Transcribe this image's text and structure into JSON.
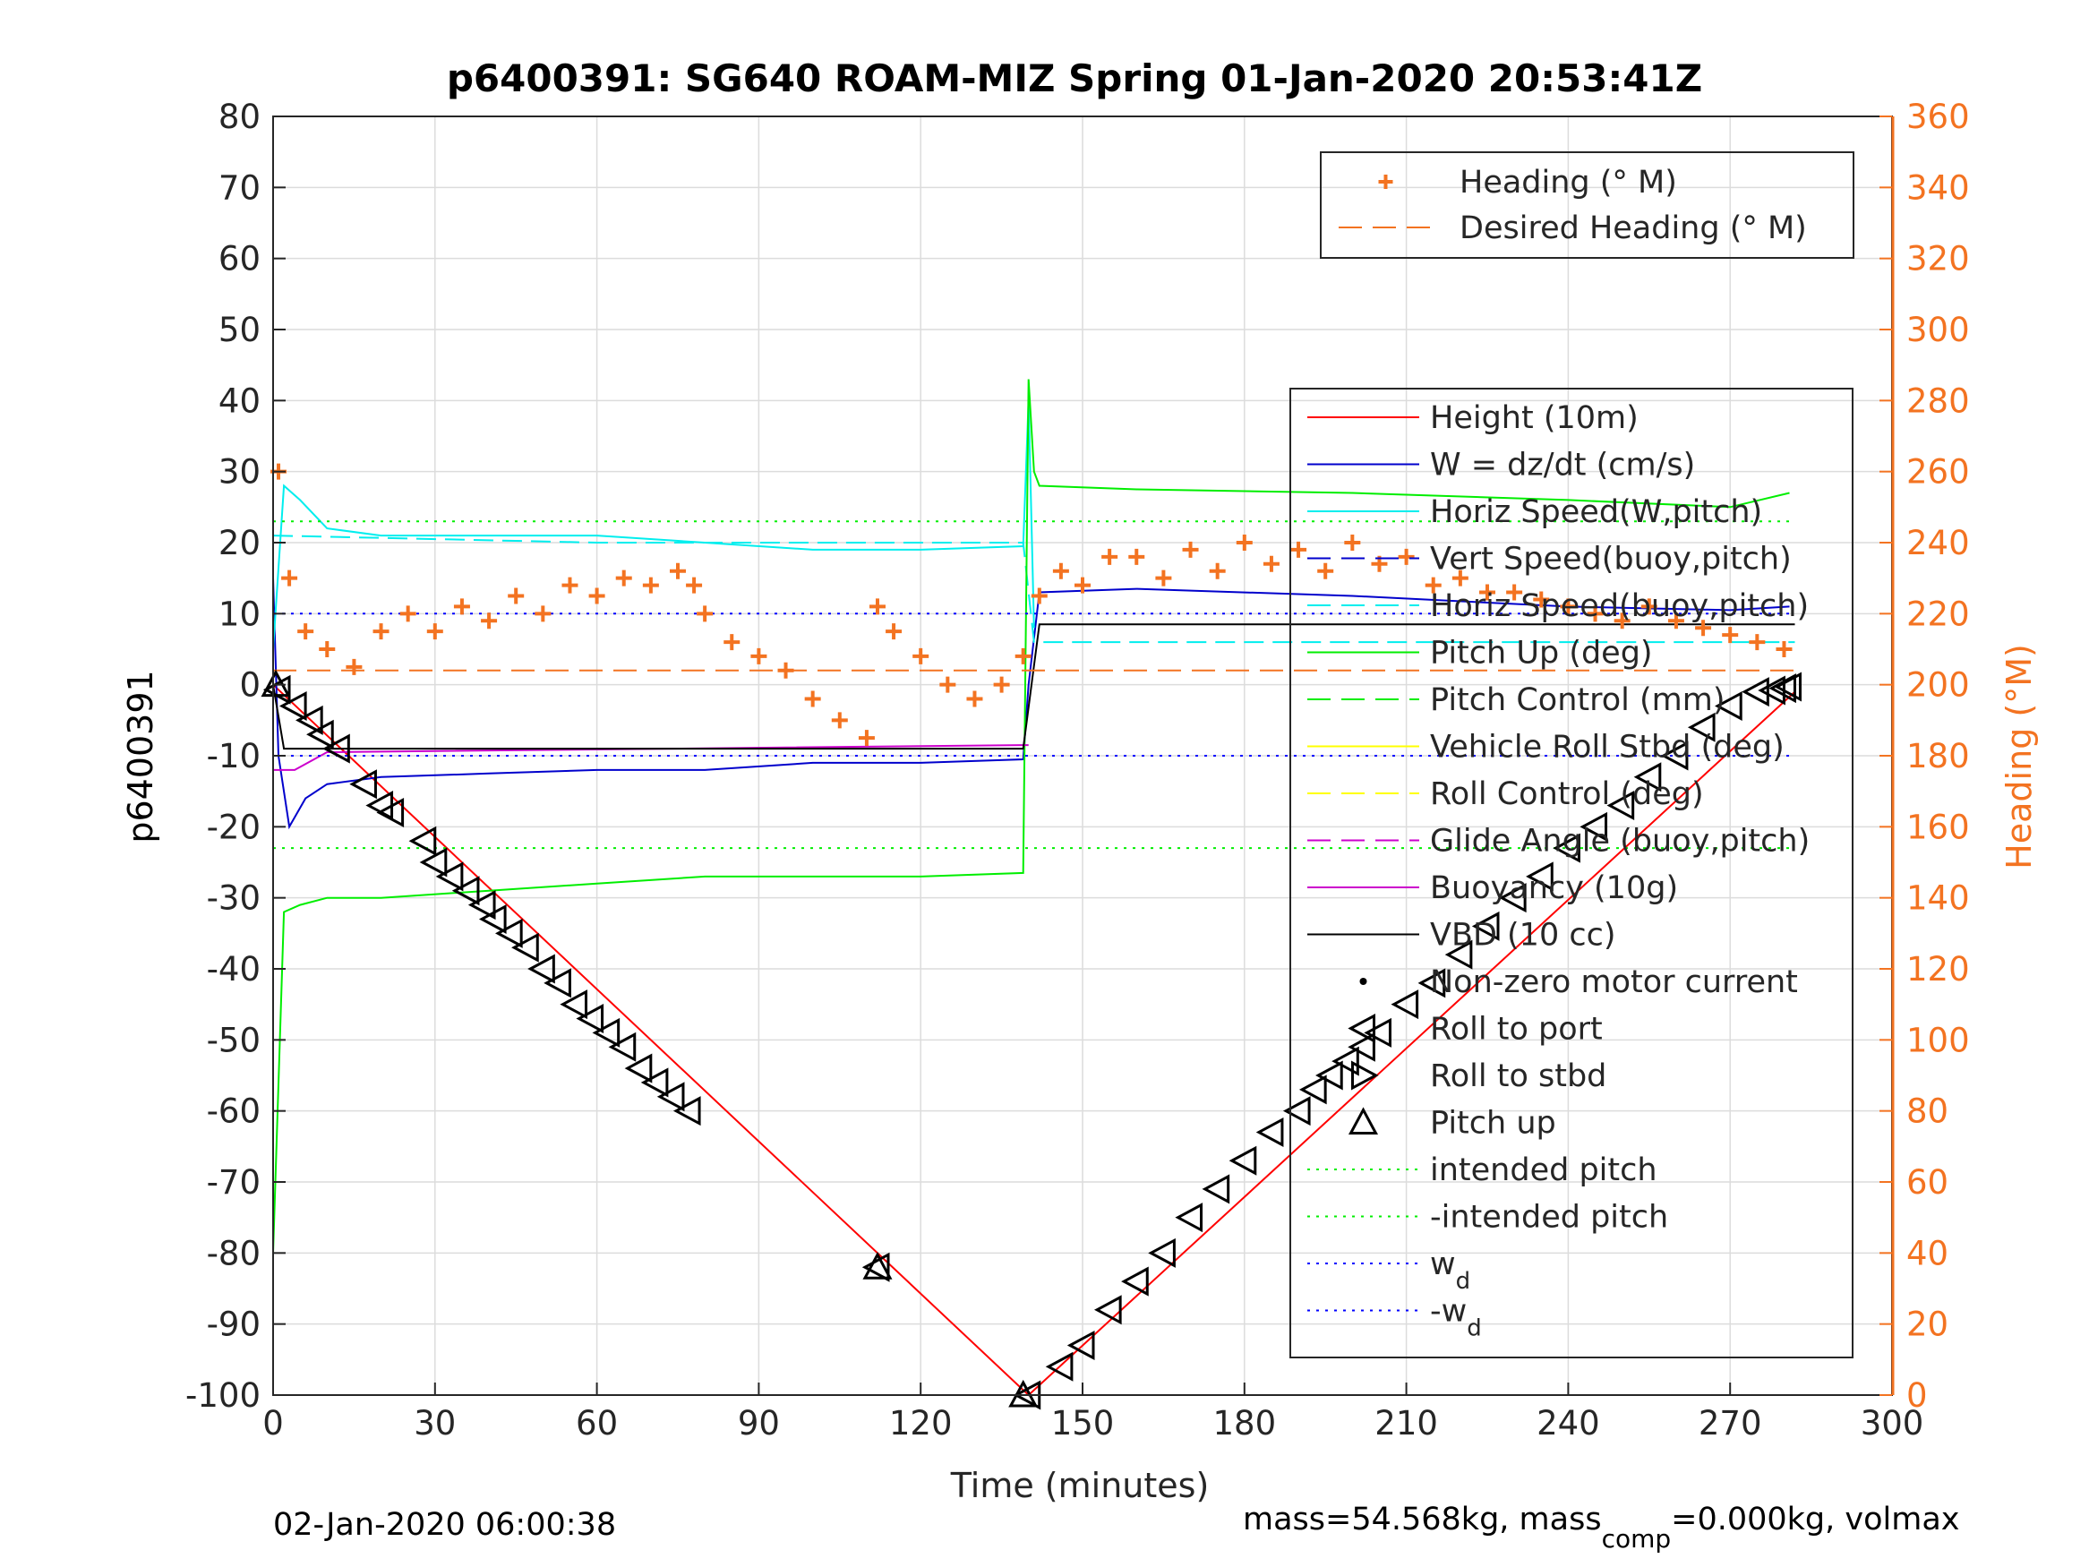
{
  "chart_data": {
    "type": "line",
    "title": "p6400391: SG640 ROAM-MIZ Spring 01-Jan-2020 20:53:41Z",
    "xlabel": "Time (minutes)",
    "ylabel": "p6400391",
    "y2label": "Heading (°M)",
    "xlim": [
      0,
      300
    ],
    "ylim": [
      -100,
      80
    ],
    "y2lim": [
      0,
      360
    ],
    "x_ticks": [
      "0",
      "30",
      "60",
      "90",
      "120",
      "150",
      "180",
      "210",
      "240",
      "270",
      "300"
    ],
    "y_ticks": [
      "-100",
      "-90",
      "-80",
      "-70",
      "-60",
      "-50",
      "-40",
      "-30",
      "-20",
      "-10",
      "0",
      "10",
      "20",
      "30",
      "40",
      "50",
      "60",
      "70",
      "80"
    ],
    "y2_ticks": [
      "0",
      "20",
      "40",
      "60",
      "80",
      "100",
      "120",
      "140",
      "160",
      "180",
      "200",
      "220",
      "240",
      "260",
      "280",
      "300",
      "320",
      "340",
      "360"
    ],
    "grid": true,
    "colors": {
      "heading": "#f37321",
      "height": "#ff0000",
      "w": "#0000cc",
      "horiz_speed": "#00eeee",
      "pitch_control": "#00ee00",
      "roll": "#ffff00",
      "buoyancy": "#cc00cc",
      "vbd": "#000000",
      "intended_pitch": "#00ee00",
      "wd": "#0000ff"
    },
    "legend_heading": [
      {
        "label": "Heading (° M)",
        "style": "plus-marker",
        "color": "#f37321"
      },
      {
        "label": "Desired Heading (° M)",
        "style": "dashed",
        "color": "#f37321"
      }
    ],
    "legend_main": [
      {
        "label": "Height (10m)",
        "style": "solid",
        "color": "#ff0000"
      },
      {
        "label": "W = dz/dt (cm/s)",
        "style": "solid",
        "color": "#0000cc"
      },
      {
        "label": "Horiz Speed(W,pitch)",
        "style": "solid",
        "color": "#00eeee"
      },
      {
        "label": "Vert Speed(buoy,pitch)",
        "style": "dashed",
        "color": "#0000cc"
      },
      {
        "label": "Horiz Speed(buoy,pitch)",
        "style": "dashed",
        "color": "#00eeee"
      },
      {
        "label": "Pitch Up (deg)",
        "style": "solid",
        "color": "#00ee00"
      },
      {
        "label": "Pitch Control (mm)",
        "style": "dashed",
        "color": "#00ee00"
      },
      {
        "label": "Vehicle Roll Stbd (deg)",
        "style": "solid",
        "color": "#ffff00"
      },
      {
        "label": "Roll Control (deg)",
        "style": "dashed",
        "color": "#ffff00"
      },
      {
        "label": "Glide Angle (buoy,pitch)",
        "style": "dashed",
        "color": "#cc00cc"
      },
      {
        "label": "Buoyancy (10g)",
        "style": "solid",
        "color": "#cc00cc"
      },
      {
        "label": "VBD (10 cc)",
        "style": "solid",
        "color": "#000000"
      },
      {
        "label": "Non-zero motor current",
        "style": "dot",
        "color": "#000000"
      },
      {
        "label": "Roll to port",
        "style": "tri-left",
        "color": "#000000"
      },
      {
        "label": "Roll to stbd",
        "style": "tri-right",
        "color": "#000000"
      },
      {
        "label": "Pitch up",
        "style": "tri-up",
        "color": "#000000"
      },
      {
        "label": "intended pitch",
        "style": "dotted",
        "color": "#00ee00"
      },
      {
        "label": "-intended pitch",
        "style": "dotted",
        "color": "#00ee00"
      },
      {
        "label": "w",
        "sub": "d",
        "style": "dotted",
        "color": "#0000ff"
      },
      {
        "label": "-w",
        "sub": "d",
        "style": "dotted",
        "color": "#0000ff"
      }
    ],
    "series": [
      {
        "name": "Height (10m)",
        "x": [
          0,
          140,
          282
        ],
        "y": [
          0,
          -100,
          -1
        ]
      },
      {
        "name": "W = dz/dt (cm/s)",
        "x": [
          0,
          1,
          3,
          6,
          10,
          20,
          40,
          60,
          80,
          100,
          120,
          139,
          140,
          142,
          160,
          200,
          240,
          270,
          281
        ],
        "y": [
          15,
          -10,
          -20,
          -16,
          -14,
          -13,
          -12.5,
          -12,
          -12,
          -11,
          -11,
          -10.5,
          0,
          13,
          13.5,
          12.5,
          11,
          10.5,
          11
        ]
      },
      {
        "name": "Horiz Speed(W,pitch)",
        "x": [
          0,
          2,
          5,
          10,
          20,
          40,
          60,
          80,
          100,
          120,
          139,
          140,
          141
        ],
        "y": [
          5,
          28,
          26,
          22,
          21,
          21,
          21,
          20,
          19,
          19,
          19.5,
          40,
          8
        ]
      },
      {
        "name": "Horiz Speed(buoy,pitch)",
        "x": [
          0,
          60,
          139,
          141,
          282
        ],
        "y": [
          21,
          20,
          20,
          6,
          6
        ]
      },
      {
        "name": "Pitch Up (deg)",
        "x": [
          0,
          2,
          5,
          10,
          20,
          40,
          60,
          80,
          100,
          120,
          139,
          140,
          141,
          142,
          160,
          200,
          240,
          270,
          281
        ],
        "y": [
          -80,
          -32,
          -31,
          -30,
          -30,
          -29,
          -28,
          -27,
          -27,
          -27,
          -26.5,
          43,
          30,
          28,
          27.5,
          27,
          26,
          25,
          27
        ]
      },
      {
        "name": "Buoyancy (10g)",
        "x": [
          0,
          4,
          10,
          139,
          140
        ],
        "y": [
          -12,
          -12,
          -9.5,
          -8.5,
          -8.5
        ]
      },
      {
        "name": "VBD (10 cc)",
        "x": [
          0,
          2,
          10,
          139,
          142,
          282
        ],
        "y": [
          0,
          -9,
          -9,
          -9,
          8.5,
          8.5
        ]
      },
      {
        "name": "intended pitch",
        "x": [
          0,
          282
        ],
        "y": [
          23,
          23
        ]
      },
      {
        "name": "-intended pitch",
        "x": [
          0,
          282
        ],
        "y": [
          -23,
          -23
        ]
      },
      {
        "name": "w_d",
        "x": [
          0,
          282
        ],
        "y": [
          10,
          10
        ]
      },
      {
        "name": "-w_d",
        "x": [
          0,
          282
        ],
        "y": [
          -10,
          -10
        ]
      },
      {
        "name": "Heading (° M)",
        "axis": "right",
        "x": [
          1,
          3,
          6,
          10,
          15,
          20,
          25,
          30,
          35,
          40,
          45,
          50,
          55,
          60,
          65,
          70,
          75,
          78,
          80,
          85,
          90,
          95,
          100,
          105,
          110,
          112,
          115,
          120,
          125,
          130,
          135,
          139,
          142,
          146,
          150,
          155,
          160,
          165,
          170,
          175,
          180,
          185,
          190,
          195,
          200,
          205,
          210,
          215,
          220,
          225,
          230,
          235,
          240,
          245,
          250,
          255,
          260,
          265,
          270,
          275,
          280
        ],
        "y": [
          260,
          230,
          215,
          210,
          205,
          215,
          220,
          215,
          222,
          218,
          225,
          220,
          228,
          225,
          230,
          228,
          232,
          228,
          220,
          212,
          208,
          204,
          196,
          190,
          185,
          222,
          215,
          208,
          200,
          196,
          200,
          208,
          225,
          232,
          228,
          236,
          236,
          230,
          238,
          232,
          240,
          234,
          238,
          232,
          240,
          234,
          236,
          228,
          230,
          226,
          226,
          224,
          222,
          220,
          218,
          222,
          218,
          216,
          214,
          212,
          210
        ]
      },
      {
        "name": "Desired Heading (° M)",
        "axis": "right",
        "x": [
          0,
          282
        ],
        "y": [
          204,
          204
        ]
      }
    ],
    "markers": [
      {
        "name": "Roll to port",
        "shape": "tri-left",
        "x": [
          1,
          4,
          7,
          9,
          12,
          17,
          20,
          22,
          28,
          30,
          33,
          36,
          39,
          41,
          44,
          47,
          50,
          53,
          56,
          59,
          62,
          65,
          68,
          71,
          74,
          77,
          112,
          140,
          146,
          150,
          155,
          160,
          165,
          170,
          175,
          180,
          185,
          190,
          193,
          196,
          199,
          202,
          205,
          210,
          215,
          220,
          225,
          230,
          235,
          240,
          245,
          250,
          255,
          260,
          265,
          270,
          275,
          278,
          280,
          281
        ],
        "y": [
          -0.7,
          -3,
          -5,
          -7,
          -9,
          -14,
          -17,
          -18,
          -22,
          -25,
          -27,
          -29,
          -31,
          -33,
          -35,
          -37,
          -40,
          -42,
          -45,
          -47,
          -49,
          -51,
          -54,
          -56,
          -58,
          -60,
          -82,
          -100,
          -96,
          -93,
          -88,
          -84,
          -80,
          -75,
          -71,
          -67,
          -63,
          -60,
          -57,
          -55,
          -53,
          -51,
          -49,
          -45,
          -42,
          -38,
          -34,
          -30,
          -27,
          -23,
          -20,
          -17,
          -13,
          -10,
          -6,
          -3,
          -1,
          -0.8,
          -0.5,
          -0.3
        ]
      },
      {
        "name": "Pitch up",
        "shape": "tri-up",
        "x": [
          0.5,
          112,
          139
        ],
        "y": [
          0,
          -82,
          -100
        ]
      }
    ]
  },
  "footer": {
    "date": "02-Jan-2020 06:00:38",
    "mass_prefix": "mass=54.568kg, mass",
    "mass_sub": "comp",
    "mass_suffix": "=0.000kg, volmax"
  }
}
